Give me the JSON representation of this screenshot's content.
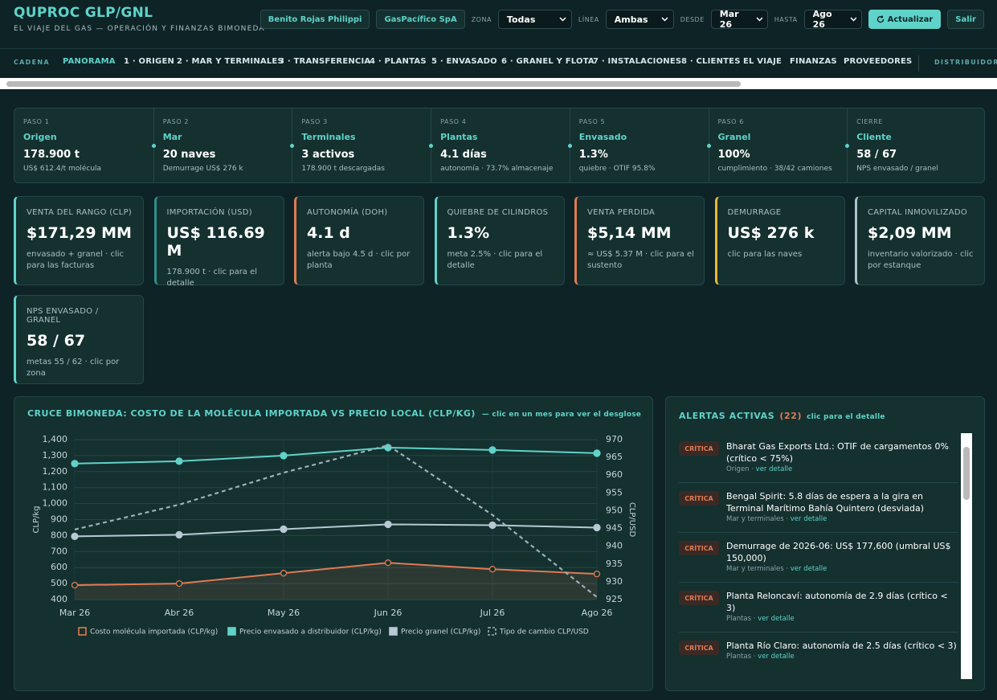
{
  "header": {
    "title": "QUPROC GLP/GNL",
    "subtitle": "EL VIAJE DEL GAS — OPERACIÓN Y FINANZAS BIMONEDA",
    "user": "Benito Rojas Philippi",
    "company": "GasPacífico SpA",
    "filters": [
      {
        "label": "ZONA",
        "value": "Todas"
      },
      {
        "label": "LÍNEA",
        "value": "Ambas"
      },
      {
        "label": "DESDE",
        "value": "Mar 26"
      },
      {
        "label": "HASTA",
        "value": "Ago 26"
      }
    ],
    "refresh": "Actualizar",
    "logout": "Salir"
  },
  "nav": {
    "section": "CADENA",
    "tabs": [
      "PANORAMA",
      "1 · ORIGEN",
      "2 · MAR Y TERMINALES",
      "3 · TRANSFERENCIA",
      "4 · PLANTAS",
      "5 · ENVASADO",
      "6 · GRANEL Y FLOTA",
      "7 · INSTALACIONES",
      "8 · CLIENTES",
      "EL VIAJE",
      "FINANZAS",
      "PROVEEDORES"
    ],
    "active": 0,
    "extra": "DISTRIBUIDORES"
  },
  "steps": [
    {
      "step": "PASO 1",
      "name": "Origen",
      "value": "178.900 t",
      "sub": "US$ 612.4/t molécula"
    },
    {
      "step": "PASO 2",
      "name": "Mar",
      "value": "20 naves",
      "sub": "Demurrage US$ 276 k"
    },
    {
      "step": "PASO 3",
      "name": "Terminales",
      "value": "3 activos",
      "sub": "178.900 t descargadas"
    },
    {
      "step": "PASO 4",
      "name": "Plantas",
      "value": "4.1 días",
      "sub": "autonomía · 73.7% almacenaje"
    },
    {
      "step": "PASO 5",
      "name": "Envasado",
      "value": "1.3%",
      "sub": "quiebre · OTIF 95.8%"
    },
    {
      "step": "PASO 6",
      "name": "Granel",
      "value": "100%",
      "sub": "cumplimiento · 38/42 camiones"
    },
    {
      "step": "CIERRE",
      "name": "Cliente",
      "value": "58 / 67",
      "sub": "NPS envasado / granel"
    }
  ],
  "kpis": [
    {
      "label": "VENTA DEL RANGO (CLP)",
      "value": "$171,29 MM",
      "sub": "envasado + granel · clic para las facturas",
      "color": "#5fd3c9"
    },
    {
      "label": "IMPORTACIÓN (USD)",
      "value": "US$ 116.69 M",
      "sub": "178.900 t · clic para el detalle",
      "color": "#2f8f8c"
    },
    {
      "label": "AUTONOMÍA (DOH)",
      "value": "4.1 d",
      "sub": "alerta bajo 4.5 d · clic por planta",
      "color": "#e07a52"
    },
    {
      "label": "QUIEBRE DE CILINDROS",
      "value": "1.3%",
      "sub": "meta 2.5% · clic para el detalle",
      "color": "#5fd3c9"
    },
    {
      "label": "VENTA PERDIDA",
      "value": "$5,14 MM",
      "sub": "≈ US$ 5.37 M · clic para el sustento",
      "color": "#e07a52"
    },
    {
      "label": "DEMURRAGE",
      "value": "US$ 276 k",
      "sub": "clic para las naves",
      "color": "#e8b83a"
    },
    {
      "label": "CAPITAL INMOVILIZADO",
      "value": "$2,09 MM",
      "sub": "inventario valorizado · clic por estanque",
      "color": "#a9c3cc"
    },
    {
      "label": "NPS ENVASADO / GRANEL",
      "value": "58 / 67",
      "sub": "metas 55 / 62 · clic por zona",
      "color": "#5fd3c9"
    }
  ],
  "chart_data": {
    "type": "line",
    "title": "CRUCE BIMONEDA: COSTO DE LA MOLÉCULA IMPORTADA VS PRECIO LOCAL (CLP/KG)",
    "subtitle": "— clic en un mes para ver el desglose",
    "categories": [
      "Mar 26",
      "Abr 26",
      "May 26",
      "Jun 26",
      "Jul 26",
      "Ago 26"
    ],
    "y_label": "CLP/kg",
    "y2_label": "CLP/USD",
    "ylim": [
      400,
      1400
    ],
    "yticks": [
      400,
      500,
      600,
      700,
      800,
      900,
      {
        "value": 1000,
        "label": "1,000"
      },
      {
        "value": 1100,
        "label": "1,100"
      },
      {
        "value": 1200,
        "label": "1,200"
      },
      {
        "value": 1300,
        "label": "1,300"
      },
      {
        "value": 1400,
        "label": "1,400"
      }
    ],
    "y2lim": [
      925,
      970
    ],
    "y2ticks": [
      925,
      930,
      935,
      940,
      945,
      950,
      955,
      960,
      965,
      970
    ],
    "grid": true,
    "series": [
      {
        "name": "Costo molécula importada (CLP/kg)",
        "color": "#e07a52",
        "values": [
          490,
          500,
          565,
          630,
          590,
          560
        ],
        "marker": "open",
        "fill": true
      },
      {
        "name": "Precio envasado a distribuidor (CLP/kg)",
        "color": "#5fd3c9",
        "values": [
          1250,
          1265,
          1300,
          1350,
          1335,
          1315
        ],
        "marker": "filled"
      },
      {
        "name": "Precio granel (CLP/kg)",
        "color": "#b6c9d4",
        "values": [
          795,
          805,
          840,
          870,
          865,
          850
        ],
        "marker": "filled"
      },
      {
        "name": "Tipo de cambio CLP/USD",
        "color": "#9bb0b8",
        "values": [
          944.7,
          951.7,
          960.7,
          968.4,
          948.8,
          925.7
        ],
        "axis": "y2",
        "dash": true
      }
    ]
  },
  "alerts": {
    "title": "ALERTAS ACTIVAS",
    "count": "(22)",
    "hint": "clic para el detalle",
    "items": [
      {
        "level": "CRÍTICA",
        "text": "Bharat Gas Exports Ltd.: OTIF de cargamentos 0% (crítico < 75%)",
        "area": "Origen",
        "link": "ver detalle"
      },
      {
        "level": "CRÍTICA",
        "text": "Bengal Spirit: 5.8 días de espera a la gira en Terminal Marítimo Bahía Quintero (desviada)",
        "area": "Mar y terminales",
        "link": "ver detalle"
      },
      {
        "level": "CRÍTICA",
        "text": "Demurrage de 2026-06: US$ 177,600 (umbral US$ 150,000)",
        "area": "Mar y terminales",
        "link": "ver detalle"
      },
      {
        "level": "CRÍTICA",
        "text": "Planta Reloncaví: autonomía de 2.9 días (crítico < 3)",
        "area": "Plantas",
        "link": "ver detalle"
      },
      {
        "level": "CRÍTICA",
        "text": "Planta Río Claro: autonomía de 2.5 días (crítico < 3)",
        "area": "Plantas",
        "link": "ver detalle"
      }
    ]
  }
}
